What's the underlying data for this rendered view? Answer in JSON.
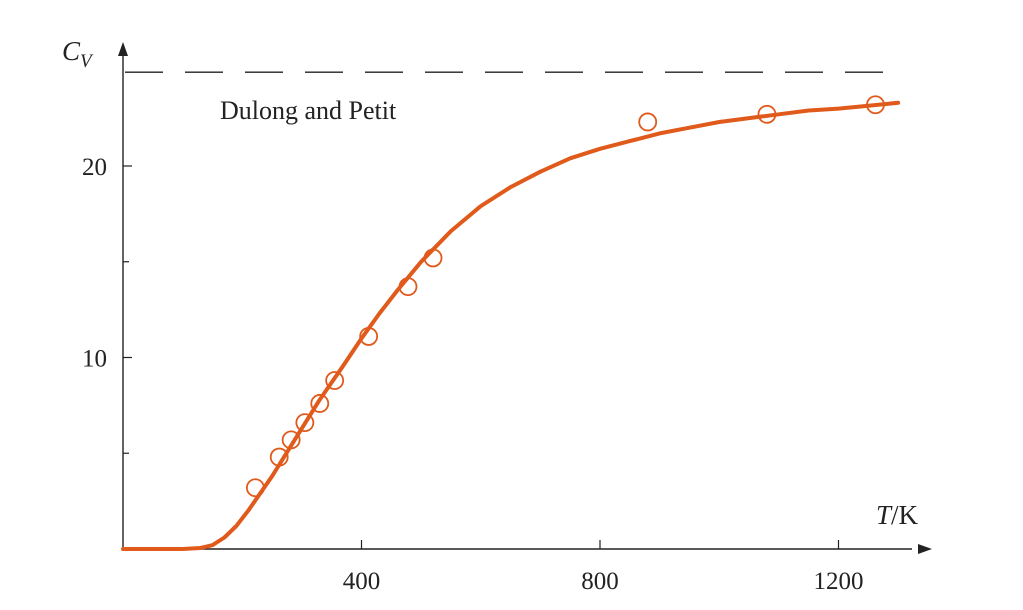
{
  "chart_data": {
    "type": "line",
    "title": "",
    "xlabel": {
      "symbol": "T",
      "unit": "/K"
    },
    "ylabel": {
      "symbol": "C",
      "subscript": "V"
    },
    "xlim": [
      0,
      1370
    ],
    "ylim": [
      0,
      26.5
    ],
    "x_ticks": [
      400,
      800,
      1200
    ],
    "x_minor_ticks": [],
    "y_ticks": [
      10,
      20
    ],
    "y_minor_ticks": [
      5,
      15
    ],
    "grid": false,
    "legend": "none",
    "colors": {
      "curve": "#e05a1c",
      "points": "#e05a1c",
      "axes": "#222222",
      "reference": "#222222"
    },
    "reference_line": {
      "y": 24.9,
      "label": "Dulong and Petit",
      "style": "dashed"
    },
    "series": [
      {
        "kind": "curve",
        "x": [
          0,
          100,
          130,
          150,
          170,
          190,
          210,
          230,
          250,
          270,
          290,
          310,
          330,
          350,
          370,
          400,
          430,
          460,
          500,
          550,
          600,
          650,
          700,
          750,
          800,
          850,
          900,
          950,
          1000,
          1050,
          1100,
          1150,
          1200,
          1250,
          1300
        ],
        "y": [
          0,
          0,
          0.05,
          0.2,
          0.6,
          1.2,
          2.0,
          2.9,
          3.8,
          4.8,
          5.8,
          6.8,
          7.8,
          8.7,
          9.6,
          11.0,
          12.3,
          13.5,
          15.0,
          16.6,
          17.9,
          18.9,
          19.7,
          20.4,
          20.9,
          21.3,
          21.7,
          22.0,
          22.3,
          22.5,
          22.7,
          22.9,
          23.0,
          23.15,
          23.3
        ]
      },
      {
        "kind": "points",
        "x": [
          222,
          262,
          282,
          305,
          330,
          355,
          412,
          478,
          520,
          880,
          1080,
          1262
        ],
        "y": [
          3.2,
          4.8,
          5.7,
          6.6,
          7.6,
          8.8,
          11.1,
          13.7,
          15.2,
          22.3,
          22.7,
          23.2
        ]
      }
    ]
  }
}
